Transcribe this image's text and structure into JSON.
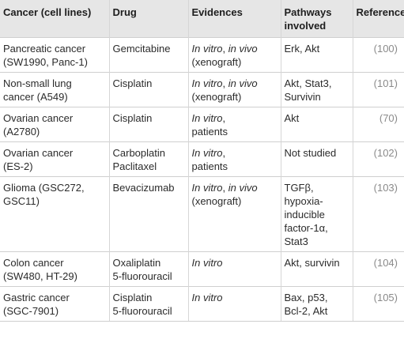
{
  "headers": {
    "cancer": "Cancer (cell lines)",
    "drug": "Drug",
    "evidences": "Evidences",
    "pathways": [
      "Pathways",
      "involved"
    ],
    "reference": "Reference"
  },
  "rows": [
    {
      "cancer": [
        "Pancreatic cancer",
        "(SW1990, Panc-1)"
      ],
      "drug": [
        "Gemcitabine"
      ],
      "evidence_it": "In vitro",
      "evidence_sep": ", ",
      "evidence_it2": "in vivo",
      "evidence_rest": "(xenograft)",
      "pathways": [
        "Erk, Akt"
      ],
      "reference": "(100)"
    },
    {
      "cancer": [
        "Non-small lung",
        "cancer (A549)"
      ],
      "drug": [
        "Cisplatin"
      ],
      "evidence_it": "In vitro",
      "evidence_sep": ", ",
      "evidence_it2": "in vivo",
      "evidence_rest": "(xenograft)",
      "pathways": [
        "Akt, Stat3,",
        "Survivin"
      ],
      "reference": "(101)"
    },
    {
      "cancer": [
        "Ovarian cancer",
        "(A2780)"
      ],
      "drug": [
        "Cisplatin"
      ],
      "evidence_it": "In vitro",
      "evidence_sep": ",",
      "evidence_it2": "",
      "evidence_rest": "patients",
      "pathways": [
        "Akt"
      ],
      "reference": "(70)"
    },
    {
      "cancer": [
        "Ovarian cancer",
        "(ES-2)"
      ],
      "drug": [
        "Carboplatin",
        "Paclitaxel"
      ],
      "evidence_it": "In vitro",
      "evidence_sep": ",",
      "evidence_it2": "",
      "evidence_rest": "patients",
      "pathways": [
        "Not studied"
      ],
      "reference": "(102)"
    },
    {
      "cancer": [
        "Glioma (GSC272,",
        "GSC11)"
      ],
      "drug": [
        "Bevacizumab"
      ],
      "evidence_it": "In vitro",
      "evidence_sep": ", ",
      "evidence_it2": "in vivo",
      "evidence_rest": "(xenograft)",
      "pathways": [
        "TGFβ,",
        "hypoxia-",
        "inducible",
        "factor-1α,",
        "Stat3"
      ],
      "reference": "(103)"
    },
    {
      "cancer": [
        "Colon cancer",
        "(SW480, HT-29)"
      ],
      "drug": [
        "Oxaliplatin",
        "5-fluorouracil"
      ],
      "evidence_it": "In vitro",
      "evidence_sep": "",
      "evidence_it2": "",
      "evidence_rest": "",
      "pathways": [
        "Akt, survivin"
      ],
      "reference": "(104)"
    },
    {
      "cancer": [
        "Gastric cancer",
        "(SGC-7901)"
      ],
      "drug": [
        "Cisplatin",
        "5-fluorouracil"
      ],
      "evidence_it": "In vitro",
      "evidence_sep": "",
      "evidence_it2": "",
      "evidence_rest": "",
      "pathways": [
        "Bax, p53,",
        "Bcl-2, Akt"
      ],
      "reference": "(105)"
    }
  ]
}
